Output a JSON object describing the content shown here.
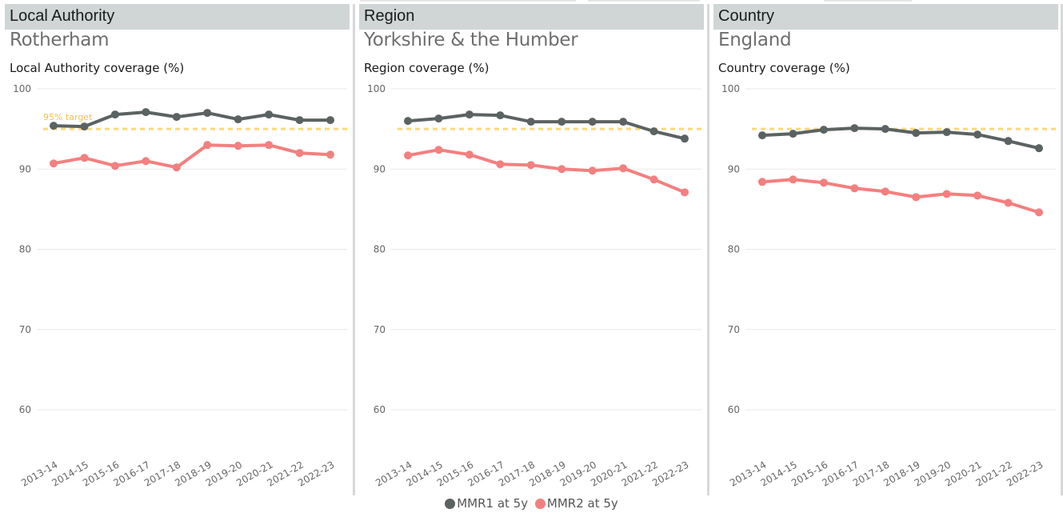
{
  "colors": {
    "mmr1": "#5b6262",
    "mmr2": "#f47f7f",
    "target": "#fbd87f",
    "grid": "#eaeaea",
    "header_bg": "#d0d5d6"
  },
  "panels": [
    {
      "header": "Local Authority",
      "area": "Rotherham",
      "subtitle": "Local Authority coverage (%)"
    },
    {
      "header": "Region",
      "area": "Yorkshire & the Humber",
      "subtitle": "Region coverage (%)"
    },
    {
      "header": "Country",
      "area": "England",
      "subtitle": "Country coverage (%)"
    }
  ],
  "legend": {
    "mmr1_label": "MMR1 at 5y",
    "mmr2_label": "MMR2 at 5y"
  },
  "chart_data": [
    {
      "type": "line",
      "title": "Local Authority coverage (%)",
      "categories": [
        "2013-14",
        "2014-15",
        "2015-16",
        "2016-17",
        "2017-18",
        "2018-19",
        "2019-20",
        "2020-21",
        "2021-22",
        "2022-23"
      ],
      "series": [
        {
          "name": "MMR1 at 5y",
          "values": [
            95.4,
            95.3,
            96.8,
            97.1,
            96.5,
            97.0,
            96.2,
            96.8,
            96.1,
            96.1
          ]
        },
        {
          "name": "MMR2 at 5y",
          "values": [
            90.7,
            91.4,
            90.4,
            91.0,
            90.2,
            93.0,
            92.9,
            93.0,
            92.0,
            91.8
          ]
        }
      ],
      "target": {
        "value": 95,
        "label": "95% target"
      },
      "yticks": [
        60,
        70,
        80,
        90,
        100
      ],
      "ylim": [
        60,
        100
      ],
      "grid": true
    },
    {
      "type": "line",
      "title": "Region coverage (%)",
      "categories": [
        "2013-14",
        "2014-15",
        "2015-16",
        "2016-17",
        "2017-18",
        "2018-19",
        "2019-20",
        "2020-21",
        "2021-22",
        "2022-23"
      ],
      "series": [
        {
          "name": "MMR1 at 5y",
          "values": [
            96.0,
            96.3,
            96.8,
            96.7,
            95.9,
            95.9,
            95.9,
            95.9,
            94.7,
            93.8
          ]
        },
        {
          "name": "MMR2 at 5y",
          "values": [
            91.7,
            92.4,
            91.8,
            90.6,
            90.5,
            90.0,
            89.8,
            90.1,
            88.7,
            87.1
          ]
        }
      ],
      "target": {
        "value": 95,
        "label": ""
      },
      "yticks": [
        60,
        70,
        80,
        90,
        100
      ],
      "ylim": [
        60,
        100
      ],
      "grid": true
    },
    {
      "type": "line",
      "title": "Country coverage (%)",
      "categories": [
        "2013-14",
        "2014-15",
        "2015-16",
        "2016-17",
        "2017-18",
        "2018-19",
        "2019-20",
        "2020-21",
        "2021-22",
        "2022-23"
      ],
      "series": [
        {
          "name": "MMR1 at 5y",
          "values": [
            94.2,
            94.4,
            94.9,
            95.1,
            95.0,
            94.5,
            94.6,
            94.3,
            93.5,
            92.6
          ]
        },
        {
          "name": "MMR2 at 5y",
          "values": [
            88.4,
            88.7,
            88.3,
            87.6,
            87.2,
            86.5,
            86.9,
            86.7,
            85.8,
            84.6
          ]
        }
      ],
      "target": {
        "value": 95,
        "label": ""
      },
      "yticks": [
        60,
        70,
        80,
        90,
        100
      ],
      "ylim": [
        60,
        100
      ],
      "grid": true
    }
  ]
}
